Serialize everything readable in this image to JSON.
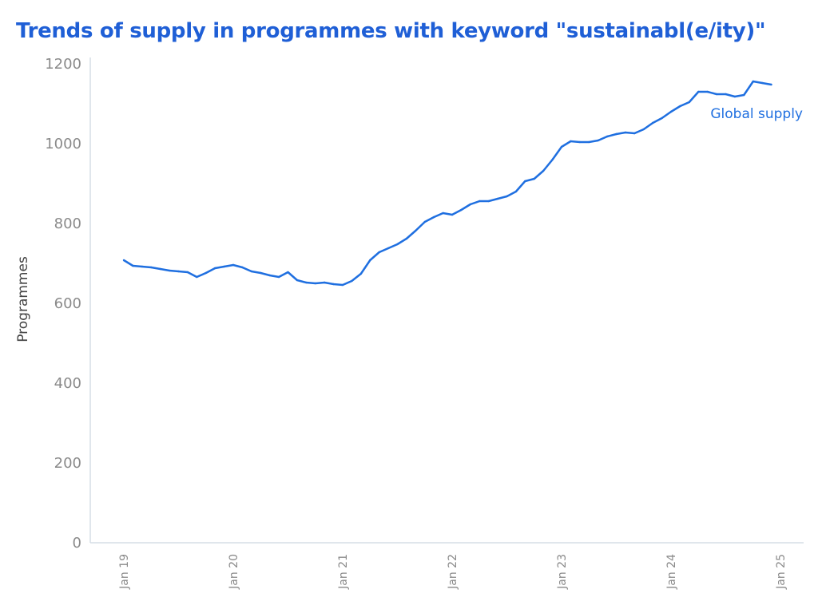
{
  "chart_data": {
    "type": "line",
    "title": "Trends of supply in programmes with keyword \"sustainabl(e/ity)\"",
    "xlabel": "",
    "ylabel": "Programmes",
    "ylim": [
      0,
      1200
    ],
    "yticks": [
      "0",
      "200",
      "400",
      "600",
      "800",
      "1000",
      "1200"
    ],
    "xticks": [
      "Jan 19",
      "Jan 20",
      "Jan 21",
      "Jan 22",
      "Jan 23",
      "Jan 24",
      "Jan 25"
    ],
    "x_range": [
      "2019-01",
      "2025-01"
    ],
    "grid": false,
    "line_color": "#1f6fe0",
    "series": [
      {
        "name": "Global supply",
        "start": "2019-01",
        "frequency": "monthly",
        "values": [
          708,
          694,
          692,
          690,
          686,
          682,
          680,
          678,
          666,
          676,
          688,
          692,
          696,
          690,
          680,
          676,
          670,
          666,
          678,
          658,
          652,
          650,
          652,
          648,
          646,
          656,
          674,
          708,
          728,
          738,
          748,
          762,
          782,
          804,
          816,
          826,
          822,
          834,
          848,
          856,
          856,
          862,
          868,
          880,
          906,
          912,
          932,
          960,
          992,
          1006,
          1004,
          1004,
          1008,
          1018,
          1024,
          1028,
          1026,
          1036,
          1052,
          1064,
          1080,
          1094,
          1104,
          1130,
          1130,
          1124,
          1124,
          1118,
          1122,
          1156,
          1152,
          1148
        ]
      }
    ]
  }
}
